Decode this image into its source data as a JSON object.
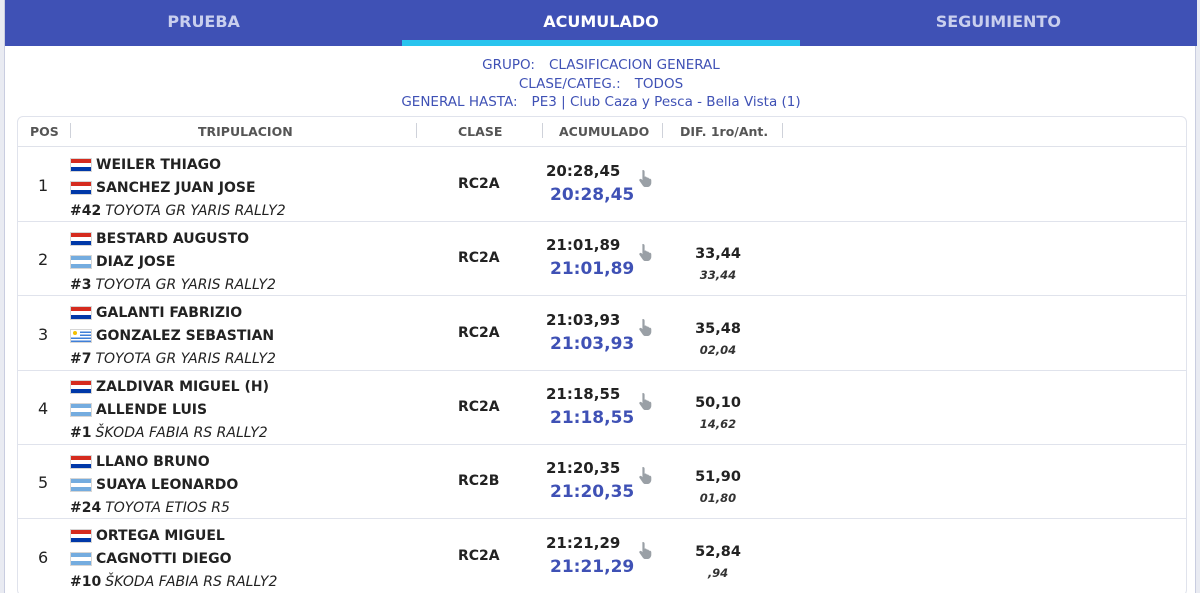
{
  "tabs": [
    {
      "label": "PRUEBA",
      "active": false
    },
    {
      "label": "ACUMULADO",
      "active": true
    },
    {
      "label": "SEGUIMIENTO",
      "active": false
    }
  ],
  "info": {
    "grupo_label": "GRUPO:",
    "grupo_value": "CLASIFICACION GENERAL",
    "clase_label": "CLASE/CATEG.:",
    "clase_value": "TODOS",
    "hasta_label": "GENERAL HASTA:",
    "hasta_value": "PE3 | Club Caza y Pesca - Bella Vista (1)"
  },
  "columns": {
    "pos": "POS",
    "crew": "TRIPULACION",
    "clase": "CLASE",
    "acc": "ACUMULADO",
    "dif": "DIF. 1ro/Ant."
  },
  "rows": [
    {
      "pos": "1",
      "driver": "WEILER THIAGO",
      "driver_flag": "paraguay-flag",
      "codriver": "SANCHEZ JUAN JOSE",
      "codriver_flag": "paraguay-flag",
      "num": "#42",
      "car": "TOYOTA GR YARIS RALLY2",
      "clase": "RC2A",
      "time": "20:28,45",
      "total": "20:28,45",
      "dif1": "",
      "dif2": ""
    },
    {
      "pos": "2",
      "driver": "BESTARD AUGUSTO",
      "driver_flag": "paraguay-flag",
      "codriver": "DIAZ JOSE",
      "codriver_flag": "argentina-flag",
      "num": "#3",
      "car": "TOYOTA GR YARIS RALLY2",
      "clase": "RC2A",
      "time": "21:01,89",
      "total": "21:01,89",
      "dif1": "33,44",
      "dif2": "33,44"
    },
    {
      "pos": "3",
      "driver": "GALANTI FABRIZIO",
      "driver_flag": "paraguay-flag",
      "codriver": "GONZALEZ SEBASTIAN",
      "codriver_flag": "uruguay-flag",
      "num": "#7",
      "car": "TOYOTA GR YARIS RALLY2",
      "clase": "RC2A",
      "time": "21:03,93",
      "total": "21:03,93",
      "dif1": "35,48",
      "dif2": "02,04"
    },
    {
      "pos": "4",
      "driver": "ZALDIVAR MIGUEL (H)",
      "driver_flag": "paraguay-flag",
      "codriver": "ALLENDE LUIS",
      "codriver_flag": "argentina-flag",
      "num": "#1",
      "car": "ŠKODA FABIA RS RALLY2",
      "clase": "RC2A",
      "time": "21:18,55",
      "total": "21:18,55",
      "dif1": "50,10",
      "dif2": "14,62"
    },
    {
      "pos": "5",
      "driver": "LLANO BRUNO",
      "driver_flag": "paraguay-flag",
      "codriver": "SUAYA LEONARDO",
      "codriver_flag": "argentina-flag",
      "num": "#24",
      "car": "TOYOTA ETIOS R5",
      "clase": "RC2B",
      "time": "21:20,35",
      "total": "21:20,35",
      "dif1": "51,90",
      "dif2": "01,80"
    },
    {
      "pos": "6",
      "driver": "ORTEGA MIGUEL",
      "driver_flag": "paraguay-flag",
      "codriver": "CAGNOTTI DIEGO",
      "codriver_flag": "argentina-flag",
      "num": "#10",
      "car": "ŠKODA FABIA RS RALLY2",
      "clase": "RC2A",
      "time": "21:21,29",
      "total": "21:21,29",
      "dif1": "52,84",
      "dif2": ",94"
    }
  ],
  "colors": {
    "brand": "#3f51b5",
    "tab_indicator": "#29c4ee"
  }
}
